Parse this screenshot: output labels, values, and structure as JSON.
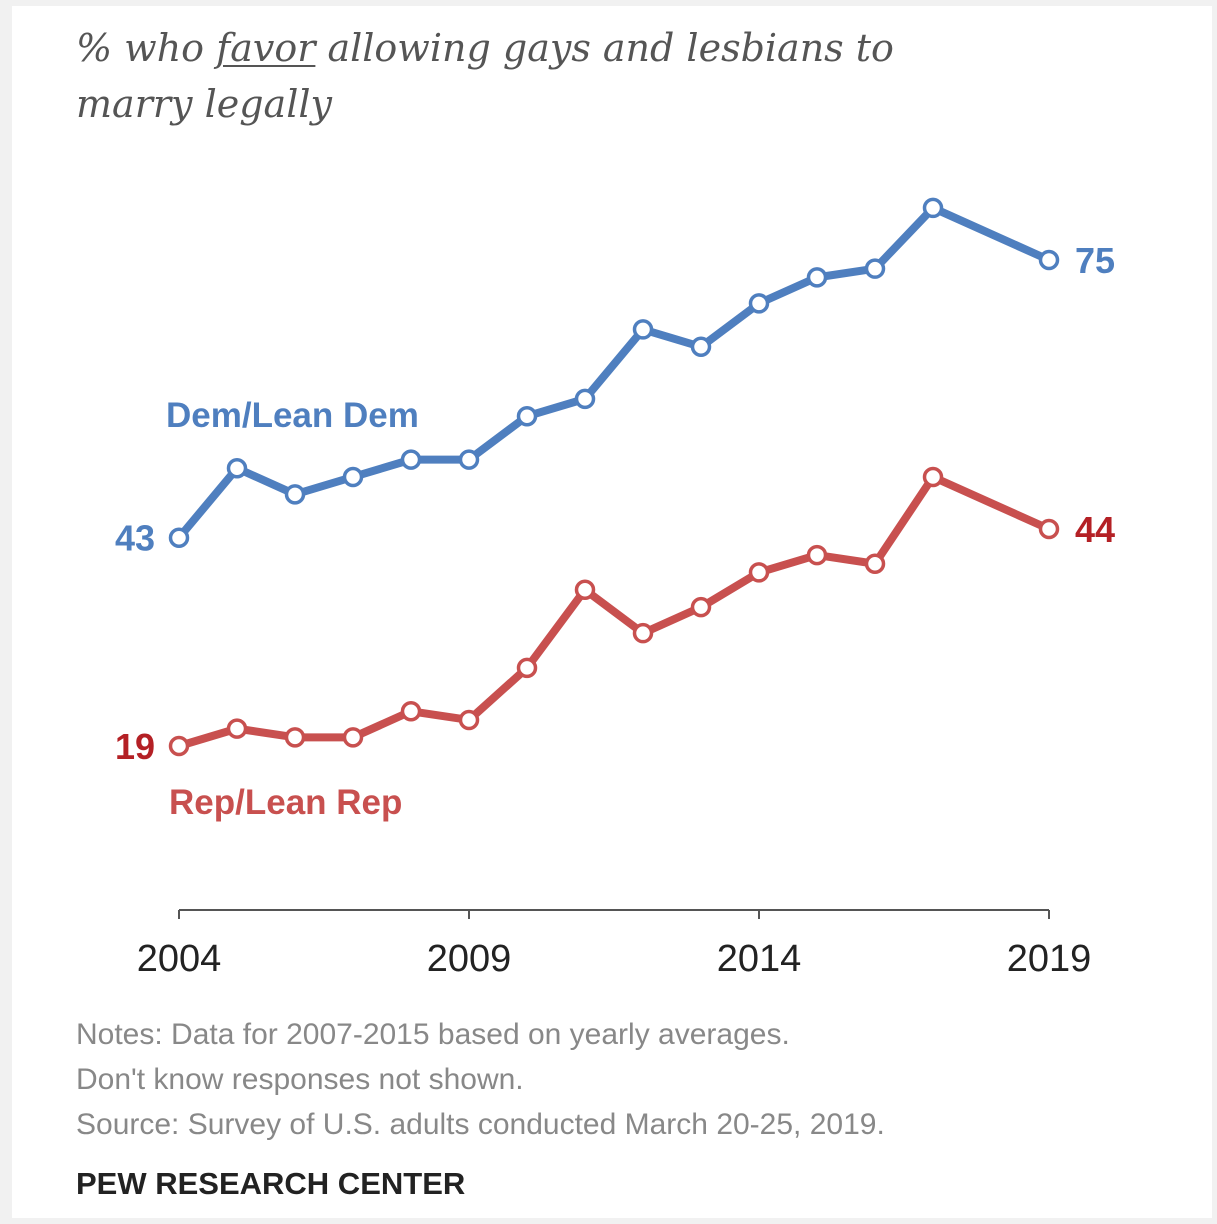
{
  "title": {
    "prefix": "% who ",
    "emphasis": "favor",
    "suffix": " allowing gays and lesbians to marry legally"
  },
  "notes": [
    "Notes: Data for 2007-2015 based on yearly averages.",
    "Don't know responses not shown.",
    "Source: Survey of U.S. adults conducted March 20-25, 2019."
  ],
  "brand": "PEW RESEARCH CENTER",
  "chart_data": {
    "type": "line",
    "title": "% who favor allowing gays and lesbians to marry legally",
    "xlabel": "",
    "ylabel": "",
    "x_ticks": [
      2004,
      2009,
      2014,
      2019
    ],
    "xlim": [
      2004,
      2019
    ],
    "ylim": [
      10,
      85
    ],
    "grid": false,
    "legend": "inline labels",
    "series": [
      {
        "name": "Dem/Lean Dem",
        "color": "#4f7fbf",
        "label_color": "#4f7fbf",
        "x": [
          2004,
          2005,
          2006,
          2007,
          2008,
          2009,
          2010,
          2011,
          2012,
          2013,
          2014,
          2015,
          2016,
          2017,
          2019
        ],
        "values": [
          43,
          51,
          48,
          50,
          52,
          52,
          57,
          59,
          67,
          65,
          70,
          73,
          74,
          81,
          75
        ],
        "start_label": "43",
        "end_label": "75"
      },
      {
        "name": "Rep/Lean Rep",
        "color": "#c8504f",
        "label_color": "#b42025",
        "x": [
          2004,
          2005,
          2006,
          2007,
          2008,
          2009,
          2010,
          2011,
          2012,
          2013,
          2014,
          2015,
          2016,
          2017,
          2019
        ],
        "values": [
          19,
          21,
          20,
          20,
          23,
          22,
          28,
          37,
          32,
          35,
          39,
          41,
          40,
          50,
          44
        ],
        "start_label": "19",
        "end_label": "44"
      }
    ]
  }
}
